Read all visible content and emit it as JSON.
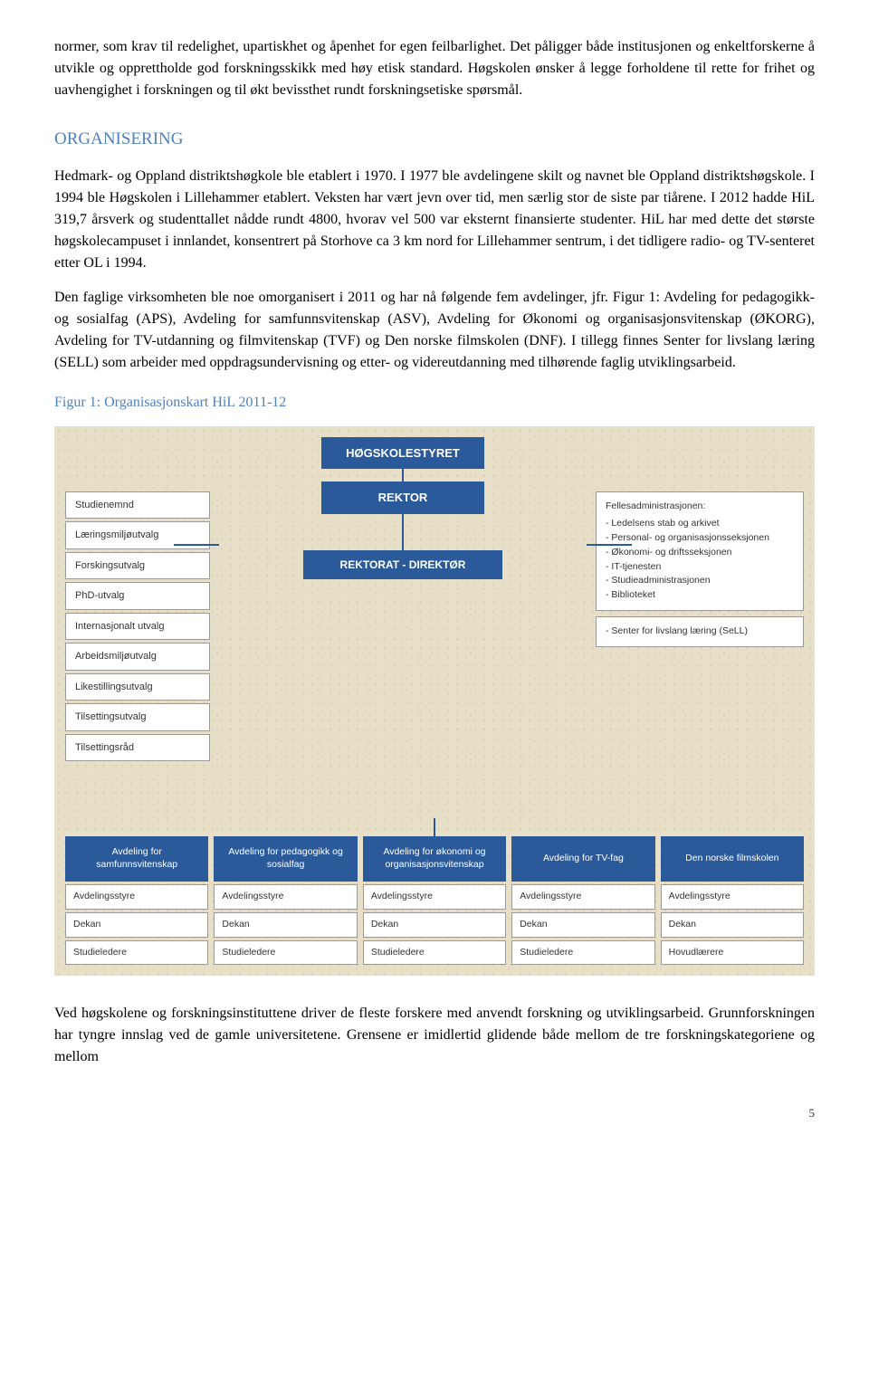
{
  "intro": {
    "p1": "normer, som krav til redelighet, upartiskhet og åpenhet for egen feilbarlighet. Det påligger både institusjonen og enkeltforskerne å utvikle og opprettholde god forskningsskikk med høy etisk standard. Høgskolen ønsker å legge forholdene til rette for frihet og uavhengighet i forskningen og til økt bevissthet rundt forskningsetiske spørsmål."
  },
  "organisering": {
    "heading": "ORGANISERING",
    "p1": "Hedmark- og Oppland distriktshøgkole ble etablert i 1970. I 1977 ble avdelingene skilt og navnet ble Oppland distriktshøgskole. I 1994 ble Høgskolen i Lillehammer etablert. Veksten har vært jevn over tid, men særlig stor de siste par tiårene. I 2012 hadde HiL 319,7 årsverk og studenttallet nådde rundt 4800, hvorav vel 500 var eksternt finansierte studenter. HiL har med dette det største høgskolecampuset i innlandet, konsentrert på Storhove ca 3 km nord for Lillehammer sentrum, i det tidligere radio- og TV-senteret etter OL i 1994.",
    "p2": "Den faglige virksomheten ble noe omorganisert i 2011 og har nå følgende fem avdelinger, jfr. Figur 1: Avdeling for pedagogikk- og sosialfag (APS), Avdeling for samfunnsvitenskap (ASV), Avdeling for Økonomi og organisasjonsvitenskap (ØKORG), Avdeling for TV-utdanning og filmvitenskap (TVF) og Den norske filmskolen (DNF). I tillegg finnes Senter for livslang læring (SELL) som arbeider med oppdragsundervisning og etter- og videreutdanning med tilhørende faglig utviklingsarbeid."
  },
  "figure": {
    "caption": "Figur 1: Organisasjonskart HiL 2011-12"
  },
  "orgchart": {
    "top": {
      "styret": "HØGSKOLESTYRET",
      "rektor": "REKTOR",
      "rektorat": "REKTORAT - DIREKTØR"
    },
    "left_boxes": [
      "Studienemnd",
      "Læringsmiljøutvalg",
      "Forskingsutvalg",
      "PhD-utvalg",
      "Internasjonalt utvalg",
      "Arbeidsmiljøutvalg",
      "Likestillingsutvalg",
      "Tilsettingsutvalg",
      "Tilsettingsråd"
    ],
    "right_admin": {
      "title": "Fellesadministrasjonen:",
      "items": [
        "- Ledelsens stab og arkivet",
        "- Personal- og organisasjonsseksjonen",
        "- Økonomi- og driftsseksjonen",
        "- IT-tjenesten",
        "- Studieadministrasjonen",
        "- Biblioteket"
      ]
    },
    "right_extra": "- Senter for livslang læring (SeLL)",
    "departments": [
      {
        "head": "Avdeling for samfunnsvitenskap",
        "subs": [
          "Avdelingsstyre",
          "Dekan",
          "Studieledere"
        ]
      },
      {
        "head": "Avdeling for pedagogikk og sosialfag",
        "subs": [
          "Avdelingsstyre",
          "Dekan",
          "Studieledere"
        ]
      },
      {
        "head": "Avdeling for økonomi og organisasjonsvitenskap",
        "subs": [
          "Avdelingsstyre",
          "Dekan",
          "Studieledere"
        ]
      },
      {
        "head": "Avdeling for TV-fag",
        "subs": [
          "Avdelingsstyre",
          "Dekan",
          "Studieledere"
        ]
      },
      {
        "head": "Den norske filmskolen",
        "subs": [
          "Avdelingsstyre",
          "Dekan",
          "Hovudlærere"
        ]
      }
    ]
  },
  "closing": {
    "p1": "Ved høgskolene og forskningsinstituttene driver de fleste forskere med anvendt forskning og utviklingsarbeid. Grunnforskningen har tyngre innslag ved de gamle universitetene. Grensene er imidlertid glidende både mellom de tre forskningskategoriene og mellom"
  },
  "page_number": "5",
  "colors": {
    "heading": "#4f81bd",
    "org_bg": "#e8dfc8",
    "blue": "#2a5a9a"
  }
}
